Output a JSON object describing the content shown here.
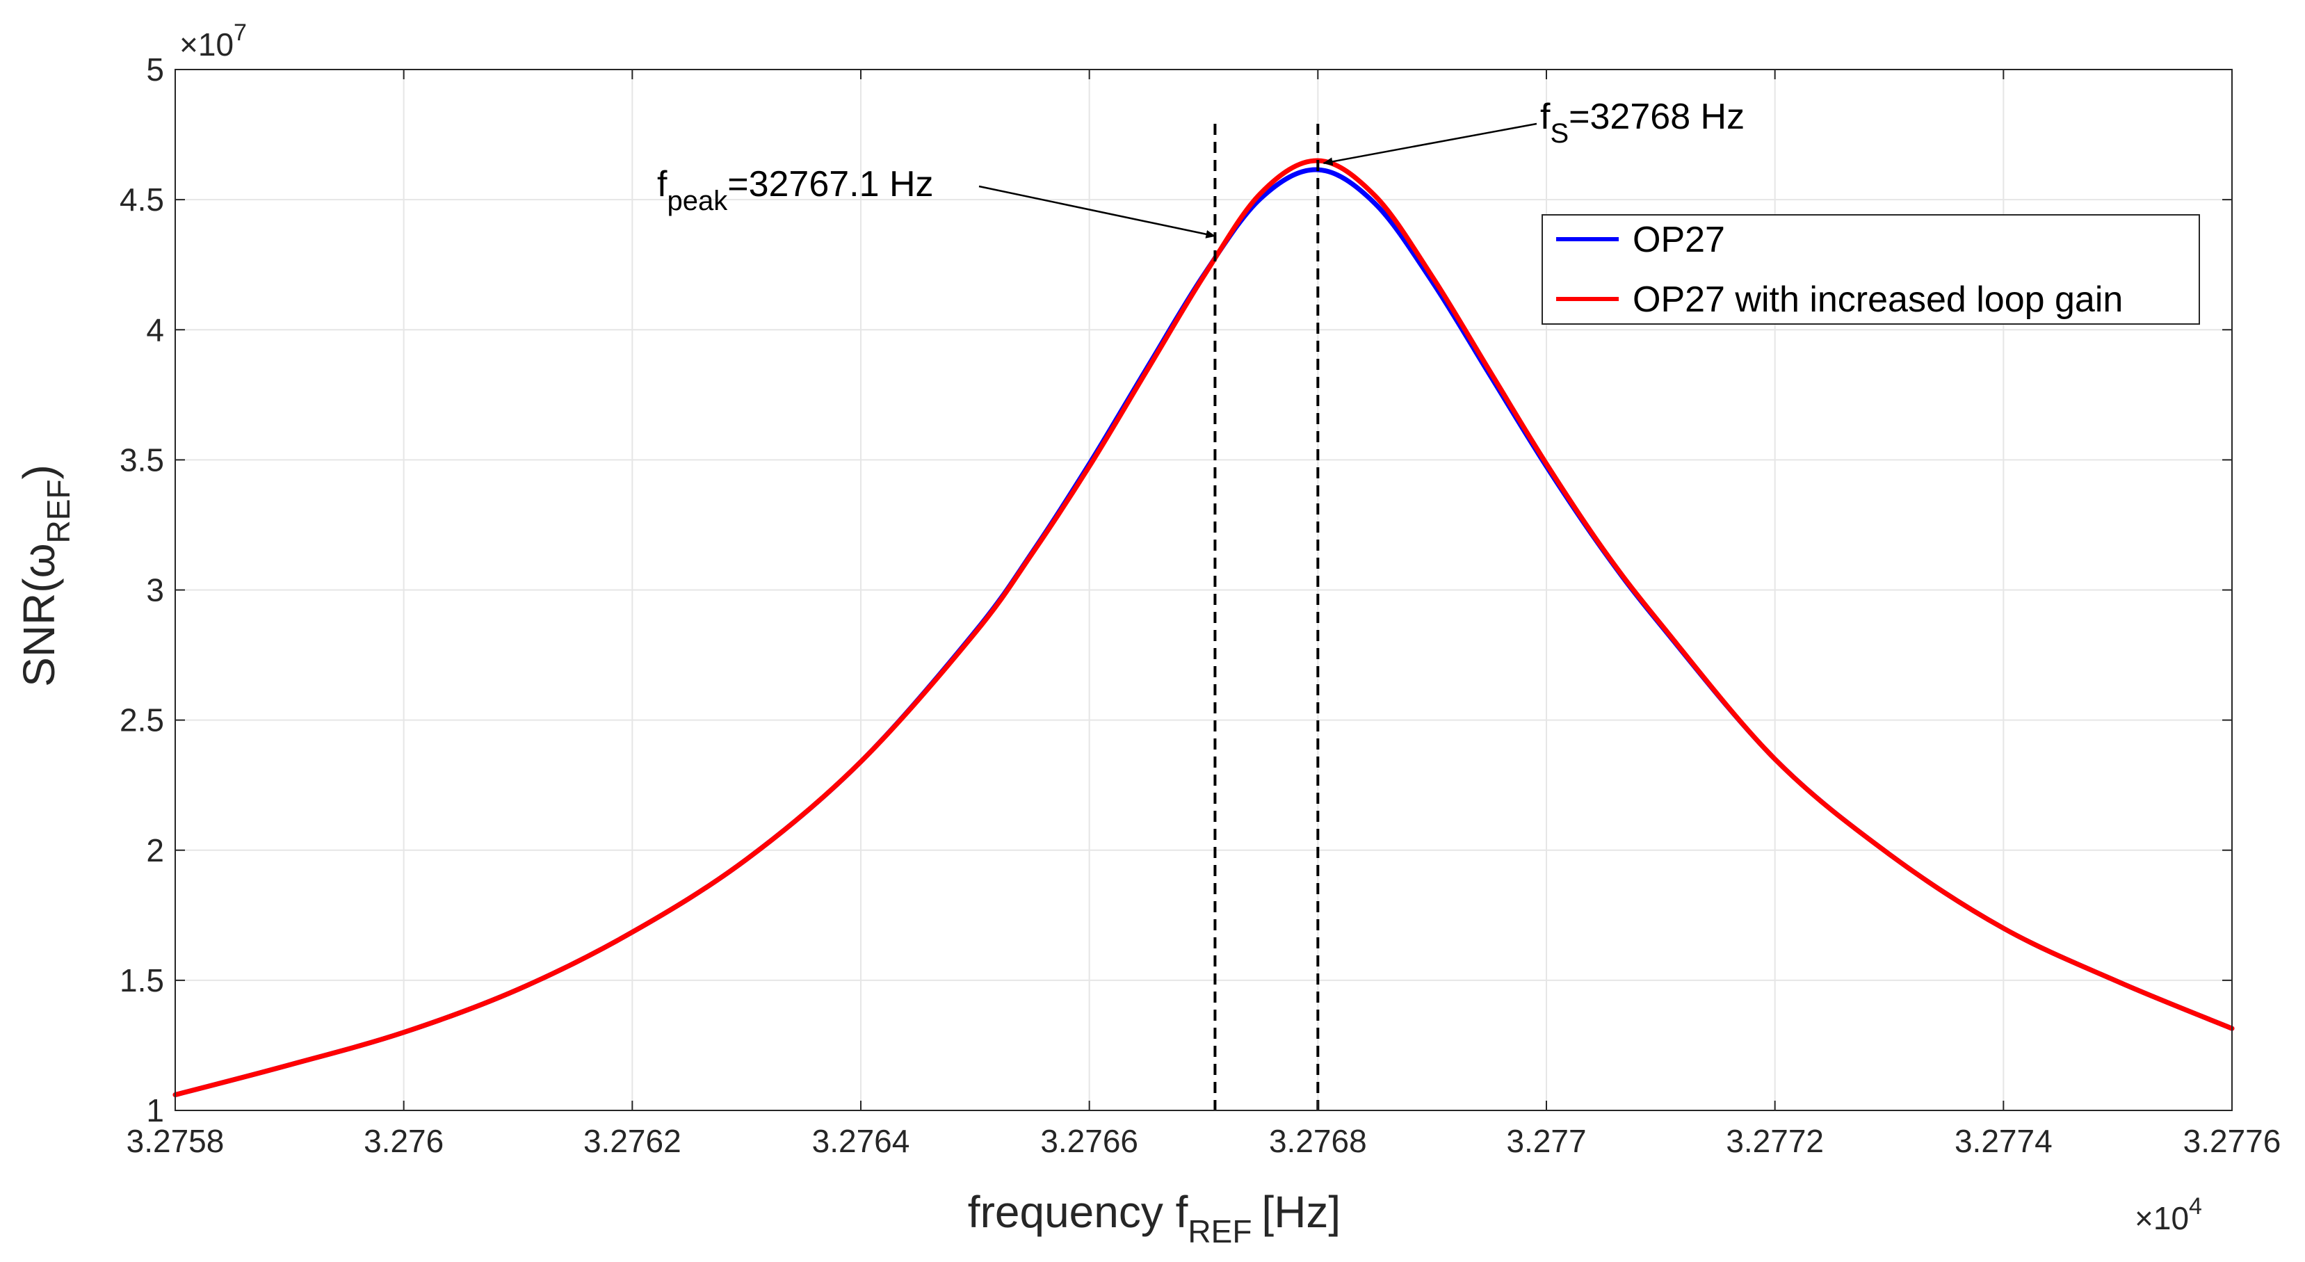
{
  "chart_data": {
    "type": "line",
    "xlabel": "frequency f",
    "xlabel_sub": "REF",
    "xlabel_unit": "[Hz]",
    "ylabel": "SNR(ω",
    "ylabel_sub": "REF",
    "ylabel_close": ")",
    "xlim": [
      32758,
      32776
    ],
    "ylim": [
      10000000.0,
      50000000.0
    ],
    "x_multiplier": "×10",
    "x_multiplier_exp": "4",
    "y_multiplier": "×10",
    "y_multiplier_exp": "7",
    "x_ticks": [
      32758,
      32760,
      32762,
      32764,
      32766,
      32768,
      32770,
      32772,
      32774,
      32776
    ],
    "x_tick_labels": [
      "3.2758",
      "3.276",
      "3.2762",
      "3.2764",
      "3.2766",
      "3.2768",
      "3.277",
      "3.2772",
      "3.2774",
      "3.2776"
    ],
    "y_ticks": [
      10000000,
      15000000,
      20000000,
      25000000,
      30000000,
      35000000,
      40000000,
      45000000,
      50000000
    ],
    "y_tick_labels": [
      "1",
      "1.5",
      "2",
      "2.5",
      "3",
      "3.5",
      "4",
      "4.5",
      "5"
    ],
    "grid": true,
    "legend_position": "top-right",
    "series": [
      {
        "name": "OP27",
        "color": "#0000ff",
        "x": [
          32758,
          32759,
          32760,
          32761,
          32762,
          32763,
          32764,
          32765,
          32765.5,
          32766,
          32766.5,
          32767,
          32767.5,
          32768,
          32768.5,
          32769,
          32769.5,
          32770,
          32770.5,
          32771,
          32772,
          32773,
          32774,
          32775,
          32776
        ],
        "y": [
          10600000,
          11750000,
          13000000,
          14650000,
          16850000,
          19650000,
          23400000,
          28400000,
          31450000,
          34850000,
          38500000,
          42100000,
          45050000,
          46150000,
          44850000,
          41850000,
          38300000,
          34750000,
          31500000,
          28650000,
          23500000,
          19850000,
          17000000,
          14950000,
          13150000
        ]
      },
      {
        "name": "OP27 with increased loop gain",
        "color": "#ff0000",
        "x": [
          32758,
          32759,
          32760,
          32761,
          32762,
          32763,
          32764,
          32765,
          32765.5,
          32766,
          32766.5,
          32767,
          32767.5,
          32768,
          32768.5,
          32769,
          32769.5,
          32770,
          32770.5,
          32771,
          32772,
          32773,
          32774,
          32775,
          32776
        ],
        "y": [
          10600000,
          11750000,
          13000000,
          14650000,
          16850000,
          19650000,
          23400000,
          28350000,
          31400000,
          34750000,
          38400000,
          42050000,
          45250000,
          46500000,
          45150000,
          42050000,
          38450000,
          34850000,
          31550000,
          28700000,
          23500000,
          19850000,
          17000000,
          14950000,
          13150000
        ]
      }
    ],
    "vlines": [
      {
        "x": 32767.1,
        "style": "dashed"
      },
      {
        "x": 32768,
        "style": "dashed"
      }
    ],
    "annotations": [
      {
        "text_main": "f",
        "text_sub": "peak",
        "text_rest": "=32767.1 Hz",
        "arrow_to_x": 32767.1,
        "arrow_to_y": 43600000
      },
      {
        "text_main": "f",
        "text_sub": "S",
        "text_rest": "=32768 Hz",
        "arrow_to_x": 32768.05,
        "arrow_to_y": 46400000
      }
    ]
  }
}
